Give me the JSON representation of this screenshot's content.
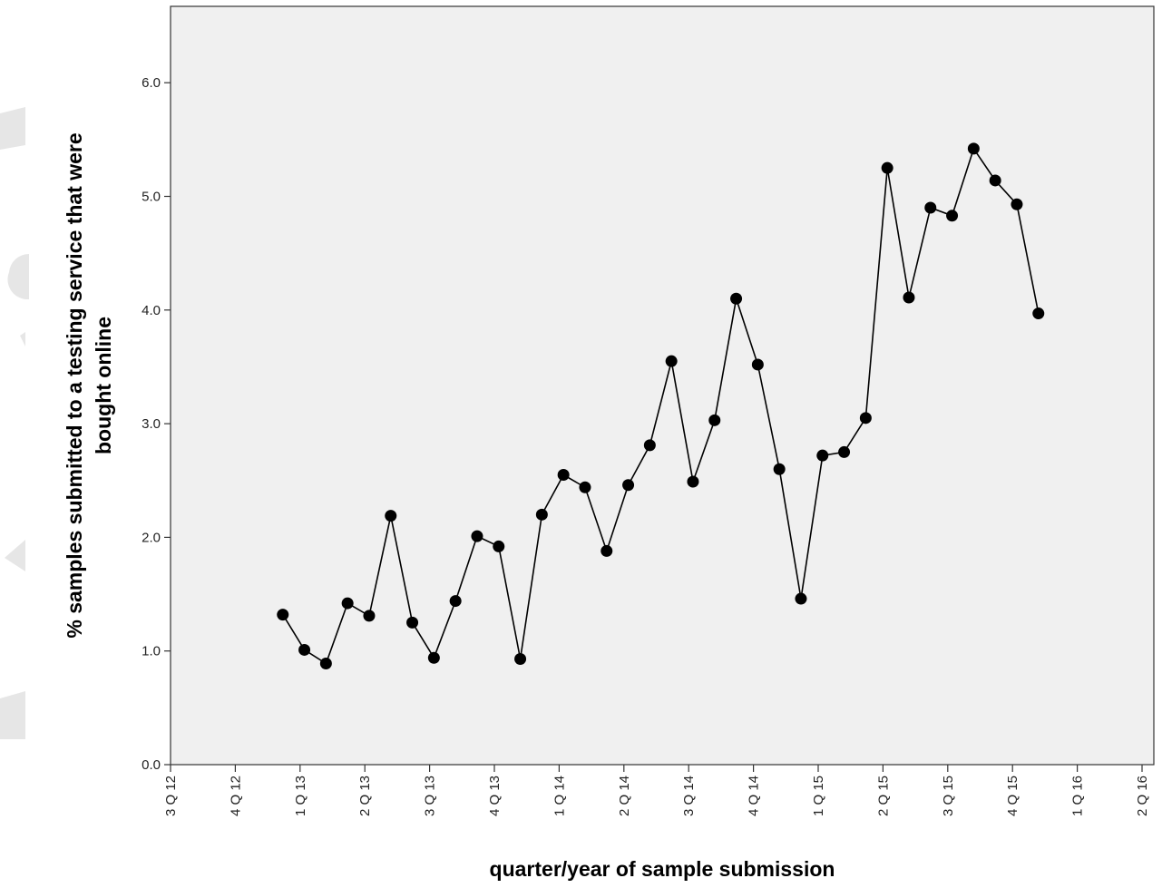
{
  "chart_data": {
    "type": "line",
    "xlabel": "quarter/year of sample submission",
    "ylabel": "% samples submitted to a testing service that were bought online",
    "ylabel_lines": [
      "% samples submitted to a testing service that were",
      "bought online"
    ],
    "ylim": [
      0,
      6.6
    ],
    "yticks": [
      0.0,
      1.0,
      2.0,
      3.0,
      4.0,
      5.0,
      6.0
    ],
    "ytick_labels": [
      "0.0",
      "1.0",
      "2.0",
      "3.0",
      "4.0",
      "5.0",
      "6.0"
    ],
    "xlim": [
      0,
      45
    ],
    "xticks": [
      0,
      3,
      6,
      9,
      12,
      15,
      18,
      21,
      24,
      27,
      30,
      33,
      36,
      39,
      42,
      45
    ],
    "xtick_labels": [
      "3 Q 12",
      "4 Q 12",
      "1 Q 13",
      "2 Q 13",
      "3 Q 13",
      "4 Q 13",
      "1 Q 14",
      "2 Q 14",
      "3 Q 14",
      "4 Q 14",
      "1 Q 15",
      "2 Q 15",
      "3 Q 15",
      "4 Q 15",
      "1 Q 16",
      "2 Q 16"
    ],
    "grid": false,
    "background_color": "#f0f0f0",
    "line_color": "#000000",
    "series": [
      {
        "x": [
          5.2,
          6.2,
          7.2,
          8.2,
          9.2,
          10.2,
          11.2,
          12.2,
          13.2,
          14.2,
          15.2,
          16.2,
          17.2,
          18.2,
          19.2,
          20.2,
          21.2,
          22.2,
          23.2,
          24.2,
          25.2,
          26.2,
          27.2,
          28.2,
          29.2,
          30.2,
          31.2,
          32.2,
          33.2,
          34.2,
          35.2,
          36.2,
          37.2,
          38.2,
          39.2,
          40.2
        ],
        "values": [
          1.32,
          1.01,
          0.89,
          1.42,
          1.31,
          2.19,
          1.25,
          0.94,
          1.44,
          2.01,
          1.92,
          0.93,
          2.2,
          2.55,
          2.44,
          1.88,
          2.46,
          2.81,
          3.55,
          2.49,
          3.03,
          4.1,
          3.52,
          2.6,
          1.46,
          2.72,
          2.75,
          3.05,
          5.25,
          4.11,
          4.9,
          4.83,
          5.42,
          5.14,
          4.93,
          3.97
        ]
      }
    ]
  }
}
